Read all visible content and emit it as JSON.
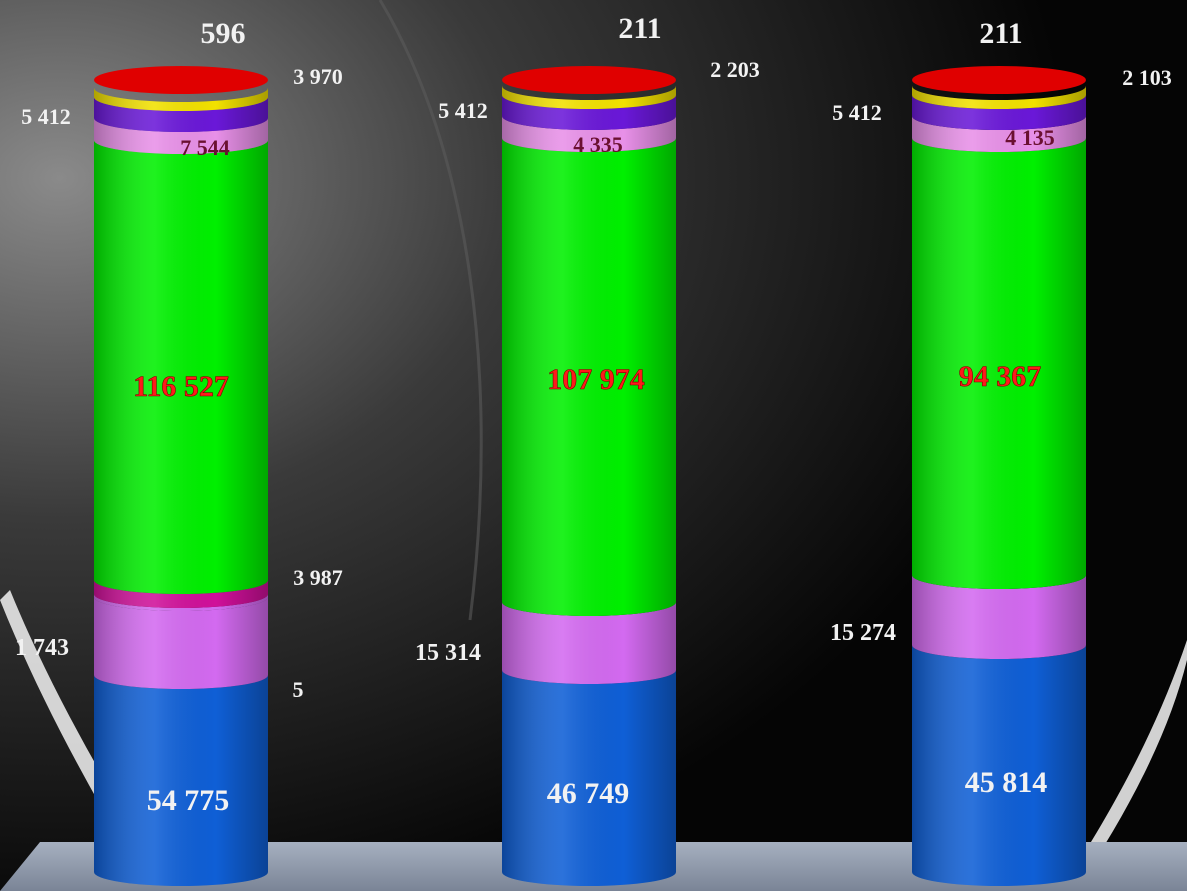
{
  "colors": {
    "blue": "#0f5fd6",
    "violet_light": "#d36af0",
    "magenta": "#d0109a",
    "green": "#00f000",
    "pink": "#e890e8",
    "purple": "#6a18d8",
    "yellow": "#f2e100",
    "red": "#e00000",
    "label_white": "#f2f2f2",
    "label_red": "#ff1a1a",
    "label_maroon": "#6a1030"
  },
  "chart_data": {
    "type": "bar",
    "stacked": true,
    "style": "3d-cylinder",
    "columns": [
      {
        "top_label": "596",
        "segments": [
          {
            "value_label": "54 775",
            "color": "blue"
          },
          {
            "value_label": "1 743",
            "color": "violet_light"
          },
          {
            "value_label": "5",
            "color": "violet_light"
          },
          {
            "value_label": "3 987",
            "color": "magenta"
          },
          {
            "value_label": "116 527",
            "color": "green"
          },
          {
            "value_label": "7 544",
            "color": "pink"
          },
          {
            "value_label": "5 412",
            "color": "purple"
          },
          {
            "value_label": "3 970",
            "color": "yellow"
          }
        ]
      },
      {
        "top_label": "211",
        "segments": [
          {
            "value_label": "46 749",
            "color": "blue"
          },
          {
            "value_label": "15 314",
            "color": "violet_light"
          },
          {
            "value_label": "107 974",
            "color": "green"
          },
          {
            "value_label": "4 335",
            "color": "pink"
          },
          {
            "value_label": "5 412",
            "color": "purple"
          },
          {
            "value_label": "2 203",
            "color": "yellow"
          }
        ]
      },
      {
        "top_label": "211",
        "segments": [
          {
            "value_label": "45 814",
            "color": "blue"
          },
          {
            "value_label": "15 274",
            "color": "violet_light"
          },
          {
            "value_label": "94 367",
            "color": "green"
          },
          {
            "value_label": "4 135",
            "color": "pink"
          },
          {
            "value_label": "5 412",
            "color": "purple"
          },
          {
            "value_label": "2 103",
            "color": "yellow"
          }
        ]
      }
    ]
  }
}
